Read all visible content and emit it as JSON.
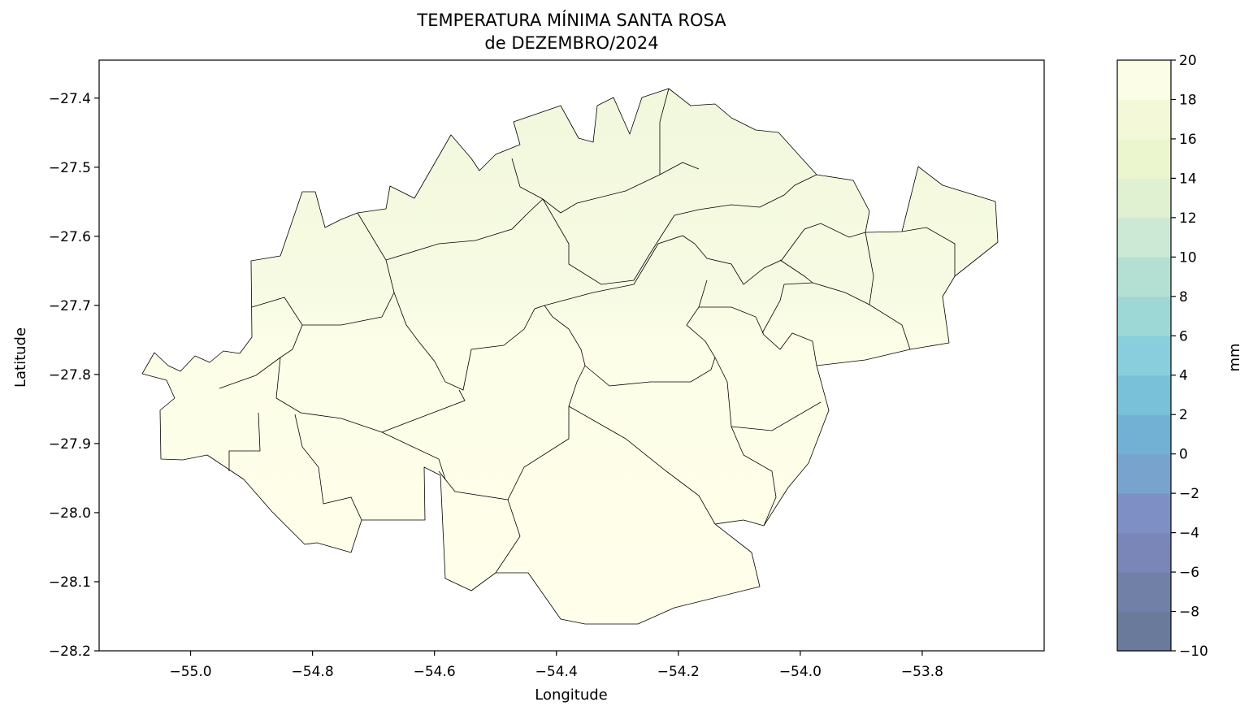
{
  "title": {
    "line1": "TEMPERATURA MÍNIMA SANTA ROSA",
    "line2": "de DEZEMBRO/2024"
  },
  "chart_data": {
    "type": "heatmap",
    "xlabel": "Longitude",
    "ylabel": "Latitude",
    "xlim": [
      -55.15,
      -53.6
    ],
    "ylim": [
      -28.2,
      -27.345
    ],
    "x_ticks": [
      -55.0,
      -54.8,
      -54.6,
      -54.4,
      -54.2,
      -54.0,
      -53.8
    ],
    "x_tick_labels": [
      "−55.0",
      "−54.8",
      "−54.6",
      "−54.4",
      "−54.2",
      "−54.0",
      "−53.8"
    ],
    "y_ticks": [
      -27.4,
      -27.5,
      -27.6,
      -27.7,
      -27.8,
      -27.9,
      -28.0,
      -28.1,
      -28.2
    ],
    "y_tick_labels": [
      "−27.4",
      "−27.5",
      "−27.6",
      "−27.7",
      "−27.8",
      "−27.9",
      "−28.0",
      "−28.1",
      "−28.2"
    ],
    "colorbar": {
      "label": "mm",
      "levels": [
        -10,
        -8,
        -6,
        -4,
        -2,
        0,
        2,
        4,
        6,
        8,
        10,
        12,
        14,
        16,
        18,
        20
      ],
      "tick_labels": [
        "−10",
        "−8",
        "−6",
        "−4",
        "−2",
        "0",
        "2",
        "4",
        "6",
        "8",
        "10",
        "12",
        "14",
        "16",
        "18",
        "20"
      ],
      "colors": [
        "#6a7a9a",
        "#7080a6",
        "#7a86b8",
        "#7d8fc4",
        "#77a3cc",
        "#72b1d3",
        "#79c0d9",
        "#88cedc",
        "#9dd7d6",
        "#b3e0d3",
        "#cbe9d4",
        "#dff1d1",
        "#ebf6cf",
        "#f3f9d8",
        "#fcfde6"
      ]
    },
    "field": {
      "southern_value": 18.5,
      "northern_value": 16.5
    }
  }
}
